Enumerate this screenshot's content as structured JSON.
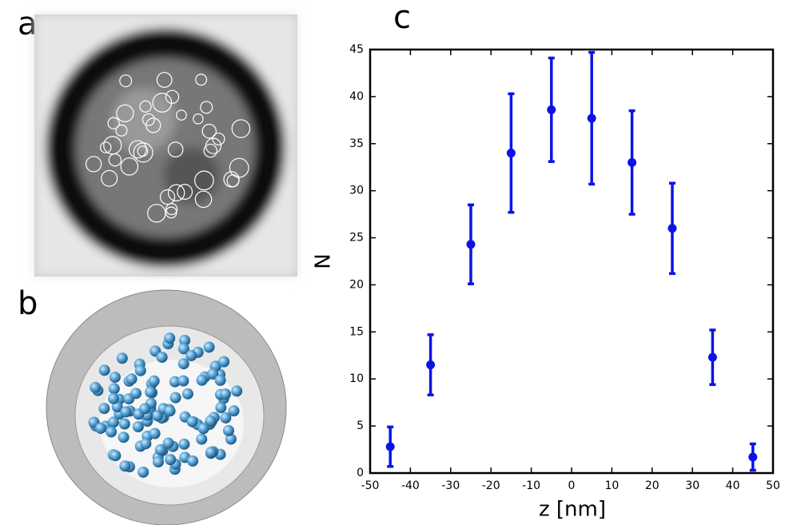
{
  "panel_labels": [
    "a",
    "b",
    "c"
  ],
  "chart_data": {
    "type": "errorbar",
    "xlabel": "z [nm]",
    "ylabel": "N",
    "x": [
      -45,
      -35,
      -25,
      -15,
      -5,
      5,
      15,
      25,
      35,
      45
    ],
    "series": [
      {
        "color": "#0a14e6",
        "values": [
          2.8,
          11.5,
          24.3,
          34,
          38.6,
          37.7,
          33,
          26,
          12.3,
          1.7
        ],
        "errors": [
          2.1,
          3.2,
          4.2,
          6.3,
          5.5,
          7,
          5.5,
          4.8,
          2.9,
          1.4
        ]
      }
    ],
    "xlim": [
      -50,
      50
    ],
    "xticks": [
      -50,
      -40,
      -30,
      -20,
      -10,
      0,
      10,
      20,
      30,
      40,
      50
    ],
    "ylim": [
      0,
      45
    ],
    "yticks": [
      0,
      5,
      10,
      15,
      20,
      25,
      30,
      35,
      40,
      45
    ]
  }
}
